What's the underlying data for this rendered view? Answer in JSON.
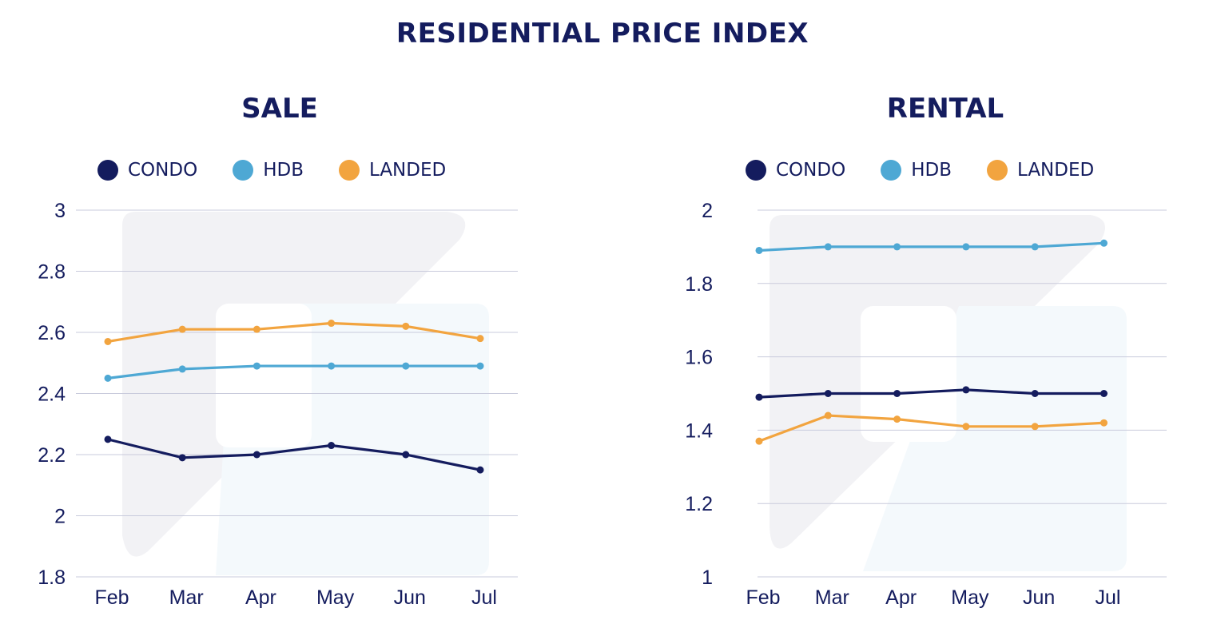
{
  "title": "RESIDENTIAL PRICE INDEX",
  "colors": {
    "CONDO": "#141c5e",
    "HDB": "#4ea8d4",
    "LANDED": "#f2a43f",
    "grid": "#c9cbdc",
    "text": "#141c5e"
  },
  "legend": [
    {
      "label": "CONDO",
      "color": "#141c5e"
    },
    {
      "label": "HDB",
      "color": "#4ea8d4"
    },
    {
      "label": "LANDED",
      "color": "#f2a43f"
    }
  ],
  "chart_data": [
    {
      "type": "line",
      "title": "SALE",
      "xlabel": "",
      "ylabel": "",
      "categories": [
        "Feb",
        "Mar",
        "Apr",
        "May",
        "Jun",
        "Jul"
      ],
      "ylim": [
        1.8,
        3
      ],
      "yticks": [
        "1.8",
        "2",
        "2.2",
        "2.4",
        "2.6",
        "2.8",
        "3"
      ],
      "grid": true,
      "legend_position": "top",
      "series": [
        {
          "name": "CONDO",
          "values": [
            2.25,
            2.19,
            2.2,
            2.23,
            2.2,
            2.15
          ]
        },
        {
          "name": "HDB",
          "values": [
            2.45,
            2.48,
            2.49,
            2.49,
            2.49,
            2.49
          ]
        },
        {
          "name": "LANDED",
          "values": [
            2.57,
            2.61,
            2.61,
            2.63,
            2.62,
            2.58
          ]
        }
      ]
    },
    {
      "type": "line",
      "title": "RENTAL",
      "xlabel": "",
      "ylabel": "",
      "categories": [
        "Feb",
        "Mar",
        "Apr",
        "May",
        "Jun",
        "Jul"
      ],
      "ylim": [
        1,
        2
      ],
      "yticks": [
        "1",
        "1.2",
        "1.4",
        "1.6",
        "1.8",
        "2"
      ],
      "grid": true,
      "legend_position": "top",
      "series": [
        {
          "name": "CONDO",
          "values": [
            1.49,
            1.5,
            1.5,
            1.51,
            1.5,
            1.5
          ]
        },
        {
          "name": "HDB",
          "values": [
            1.89,
            1.9,
            1.9,
            1.9,
            1.9,
            1.91
          ]
        },
        {
          "name": "LANDED",
          "values": [
            1.37,
            1.44,
            1.43,
            1.41,
            1.41,
            1.42
          ]
        }
      ]
    }
  ]
}
